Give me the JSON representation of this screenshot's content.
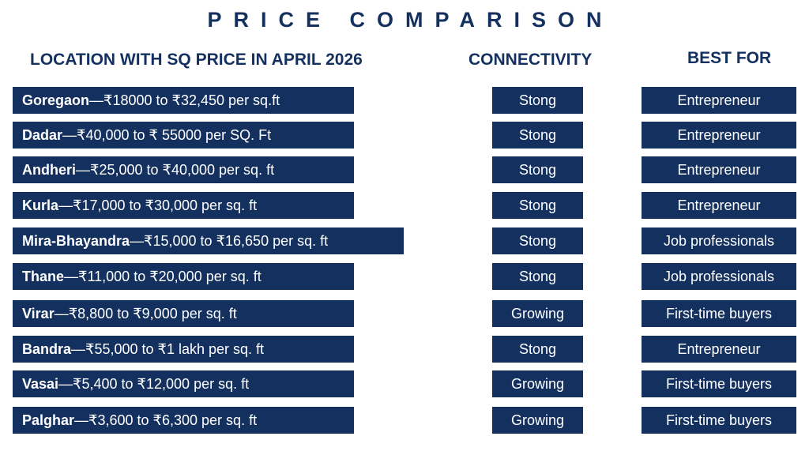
{
  "title": "PRICE COMPARISON",
  "headers": {
    "location": "LOCATION WITH SQ PRICE IN APRIL 2026",
    "connectivity": "CONNECTIVITY",
    "best_for": "BEST FOR"
  },
  "colors": {
    "navy": "#13305f",
    "text_on_navy": "#ffffff"
  },
  "rows": [
    {
      "place": "Goregaon",
      "price": "—₹18000 to ₹32,450 per sq.ft",
      "connectivity": "Stong",
      "best_for": "Entrepreneur"
    },
    {
      "place": "Dadar",
      "price": "—₹40,000 to ₹ 55000 per SQ. Ft",
      "connectivity": "Stong",
      "best_for": "Entrepreneur"
    },
    {
      "place": "Andheri",
      "price": "—₹25,000 to ₹40,000 per sq. ft",
      "connectivity": "Stong",
      "best_for": "Entrepreneur"
    },
    {
      "place": "Kurla",
      "price": "—₹17,000 to ₹30,000 per sq. ft",
      "connectivity": "Stong",
      "best_for": "Entrepreneur"
    },
    {
      "place": "Mira-Bhayandra",
      "price": "—₹15,000 to ₹16,650 per sq. ft",
      "connectivity": "Stong",
      "best_for": "Job professionals"
    },
    {
      "place": "Thane",
      "price": "—₹11,000 to ₹20,000 per sq. ft",
      "connectivity": "Stong",
      "best_for": "Job professionals"
    },
    {
      "place": "Virar",
      "price": "—₹8,800 to ₹9,000 per sq. ft",
      "connectivity": "Growing",
      "best_for": "First-time buyers"
    },
    {
      "place": "Bandra",
      "price": "—₹55,000 to ₹1 lakh per sq. ft",
      "connectivity": "Stong",
      "best_for": "Entrepreneur"
    },
    {
      "place": "Vasai",
      "price": "—₹5,400 to ₹12,000 per sq. ft",
      "connectivity": "Growing",
      "best_for": "First-time buyers"
    },
    {
      "place": "Palghar",
      "price": "—₹3,600 to ₹6,300 per sq. ft",
      "connectivity": "Growing",
      "best_for": "First-time buyers"
    }
  ]
}
